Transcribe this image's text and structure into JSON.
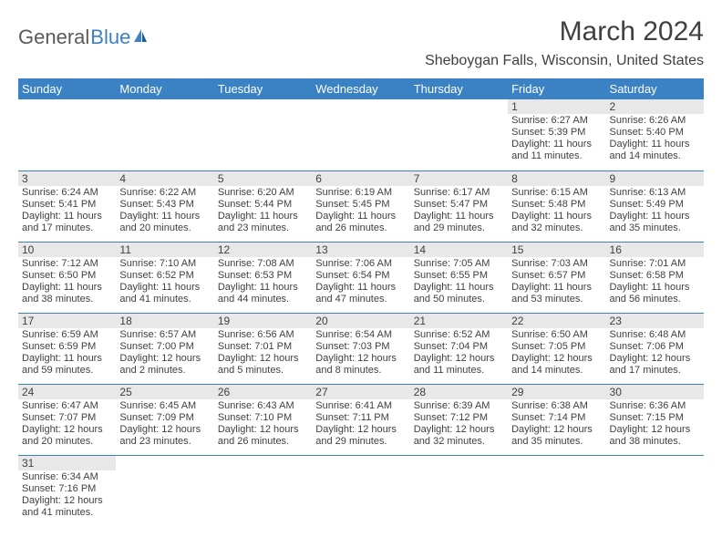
{
  "logo": {
    "text1": "General",
    "text2": "Blue"
  },
  "title": "March 2024",
  "location": "Sheboygan Falls, Wisconsin, United States",
  "colors": {
    "accent": "#3b82c4",
    "dayrow_bg": "#e8e8e8",
    "text": "#404040",
    "header_text": "#ffffff"
  },
  "daysOfWeek": [
    "Sunday",
    "Monday",
    "Tuesday",
    "Wednesday",
    "Thursday",
    "Friday",
    "Saturday"
  ],
  "weeks": [
    [
      null,
      null,
      null,
      null,
      null,
      {
        "n": "1",
        "sr": "Sunrise: 6:27 AM",
        "ss": "Sunset: 5:39 PM",
        "d1": "Daylight: 11 hours",
        "d2": "and 11 minutes."
      },
      {
        "n": "2",
        "sr": "Sunrise: 6:26 AM",
        "ss": "Sunset: 5:40 PM",
        "d1": "Daylight: 11 hours",
        "d2": "and 14 minutes."
      }
    ],
    [
      {
        "n": "3",
        "sr": "Sunrise: 6:24 AM",
        "ss": "Sunset: 5:41 PM",
        "d1": "Daylight: 11 hours",
        "d2": "and 17 minutes."
      },
      {
        "n": "4",
        "sr": "Sunrise: 6:22 AM",
        "ss": "Sunset: 5:43 PM",
        "d1": "Daylight: 11 hours",
        "d2": "and 20 minutes."
      },
      {
        "n": "5",
        "sr": "Sunrise: 6:20 AM",
        "ss": "Sunset: 5:44 PM",
        "d1": "Daylight: 11 hours",
        "d2": "and 23 minutes."
      },
      {
        "n": "6",
        "sr": "Sunrise: 6:19 AM",
        "ss": "Sunset: 5:45 PM",
        "d1": "Daylight: 11 hours",
        "d2": "and 26 minutes."
      },
      {
        "n": "7",
        "sr": "Sunrise: 6:17 AM",
        "ss": "Sunset: 5:47 PM",
        "d1": "Daylight: 11 hours",
        "d2": "and 29 minutes."
      },
      {
        "n": "8",
        "sr": "Sunrise: 6:15 AM",
        "ss": "Sunset: 5:48 PM",
        "d1": "Daylight: 11 hours",
        "d2": "and 32 minutes."
      },
      {
        "n": "9",
        "sr": "Sunrise: 6:13 AM",
        "ss": "Sunset: 5:49 PM",
        "d1": "Daylight: 11 hours",
        "d2": "and 35 minutes."
      }
    ],
    [
      {
        "n": "10",
        "sr": "Sunrise: 7:12 AM",
        "ss": "Sunset: 6:50 PM",
        "d1": "Daylight: 11 hours",
        "d2": "and 38 minutes."
      },
      {
        "n": "11",
        "sr": "Sunrise: 7:10 AM",
        "ss": "Sunset: 6:52 PM",
        "d1": "Daylight: 11 hours",
        "d2": "and 41 minutes."
      },
      {
        "n": "12",
        "sr": "Sunrise: 7:08 AM",
        "ss": "Sunset: 6:53 PM",
        "d1": "Daylight: 11 hours",
        "d2": "and 44 minutes."
      },
      {
        "n": "13",
        "sr": "Sunrise: 7:06 AM",
        "ss": "Sunset: 6:54 PM",
        "d1": "Daylight: 11 hours",
        "d2": "and 47 minutes."
      },
      {
        "n": "14",
        "sr": "Sunrise: 7:05 AM",
        "ss": "Sunset: 6:55 PM",
        "d1": "Daylight: 11 hours",
        "d2": "and 50 minutes."
      },
      {
        "n": "15",
        "sr": "Sunrise: 7:03 AM",
        "ss": "Sunset: 6:57 PM",
        "d1": "Daylight: 11 hours",
        "d2": "and 53 minutes."
      },
      {
        "n": "16",
        "sr": "Sunrise: 7:01 AM",
        "ss": "Sunset: 6:58 PM",
        "d1": "Daylight: 11 hours",
        "d2": "and 56 minutes."
      }
    ],
    [
      {
        "n": "17",
        "sr": "Sunrise: 6:59 AM",
        "ss": "Sunset: 6:59 PM",
        "d1": "Daylight: 11 hours",
        "d2": "and 59 minutes."
      },
      {
        "n": "18",
        "sr": "Sunrise: 6:57 AM",
        "ss": "Sunset: 7:00 PM",
        "d1": "Daylight: 12 hours",
        "d2": "and 2 minutes."
      },
      {
        "n": "19",
        "sr": "Sunrise: 6:56 AM",
        "ss": "Sunset: 7:01 PM",
        "d1": "Daylight: 12 hours",
        "d2": "and 5 minutes."
      },
      {
        "n": "20",
        "sr": "Sunrise: 6:54 AM",
        "ss": "Sunset: 7:03 PM",
        "d1": "Daylight: 12 hours",
        "d2": "and 8 minutes."
      },
      {
        "n": "21",
        "sr": "Sunrise: 6:52 AM",
        "ss": "Sunset: 7:04 PM",
        "d1": "Daylight: 12 hours",
        "d2": "and 11 minutes."
      },
      {
        "n": "22",
        "sr": "Sunrise: 6:50 AM",
        "ss": "Sunset: 7:05 PM",
        "d1": "Daylight: 12 hours",
        "d2": "and 14 minutes."
      },
      {
        "n": "23",
        "sr": "Sunrise: 6:48 AM",
        "ss": "Sunset: 7:06 PM",
        "d1": "Daylight: 12 hours",
        "d2": "and 17 minutes."
      }
    ],
    [
      {
        "n": "24",
        "sr": "Sunrise: 6:47 AM",
        "ss": "Sunset: 7:07 PM",
        "d1": "Daylight: 12 hours",
        "d2": "and 20 minutes."
      },
      {
        "n": "25",
        "sr": "Sunrise: 6:45 AM",
        "ss": "Sunset: 7:09 PM",
        "d1": "Daylight: 12 hours",
        "d2": "and 23 minutes."
      },
      {
        "n": "26",
        "sr": "Sunrise: 6:43 AM",
        "ss": "Sunset: 7:10 PM",
        "d1": "Daylight: 12 hours",
        "d2": "and 26 minutes."
      },
      {
        "n": "27",
        "sr": "Sunrise: 6:41 AM",
        "ss": "Sunset: 7:11 PM",
        "d1": "Daylight: 12 hours",
        "d2": "and 29 minutes."
      },
      {
        "n": "28",
        "sr": "Sunrise: 6:39 AM",
        "ss": "Sunset: 7:12 PM",
        "d1": "Daylight: 12 hours",
        "d2": "and 32 minutes."
      },
      {
        "n": "29",
        "sr": "Sunrise: 6:38 AM",
        "ss": "Sunset: 7:14 PM",
        "d1": "Daylight: 12 hours",
        "d2": "and 35 minutes."
      },
      {
        "n": "30",
        "sr": "Sunrise: 6:36 AM",
        "ss": "Sunset: 7:15 PM",
        "d1": "Daylight: 12 hours",
        "d2": "and 38 minutes."
      }
    ],
    [
      {
        "n": "31",
        "sr": "Sunrise: 6:34 AM",
        "ss": "Sunset: 7:16 PM",
        "d1": "Daylight: 12 hours",
        "d2": "and 41 minutes."
      },
      null,
      null,
      null,
      null,
      null,
      null
    ]
  ]
}
